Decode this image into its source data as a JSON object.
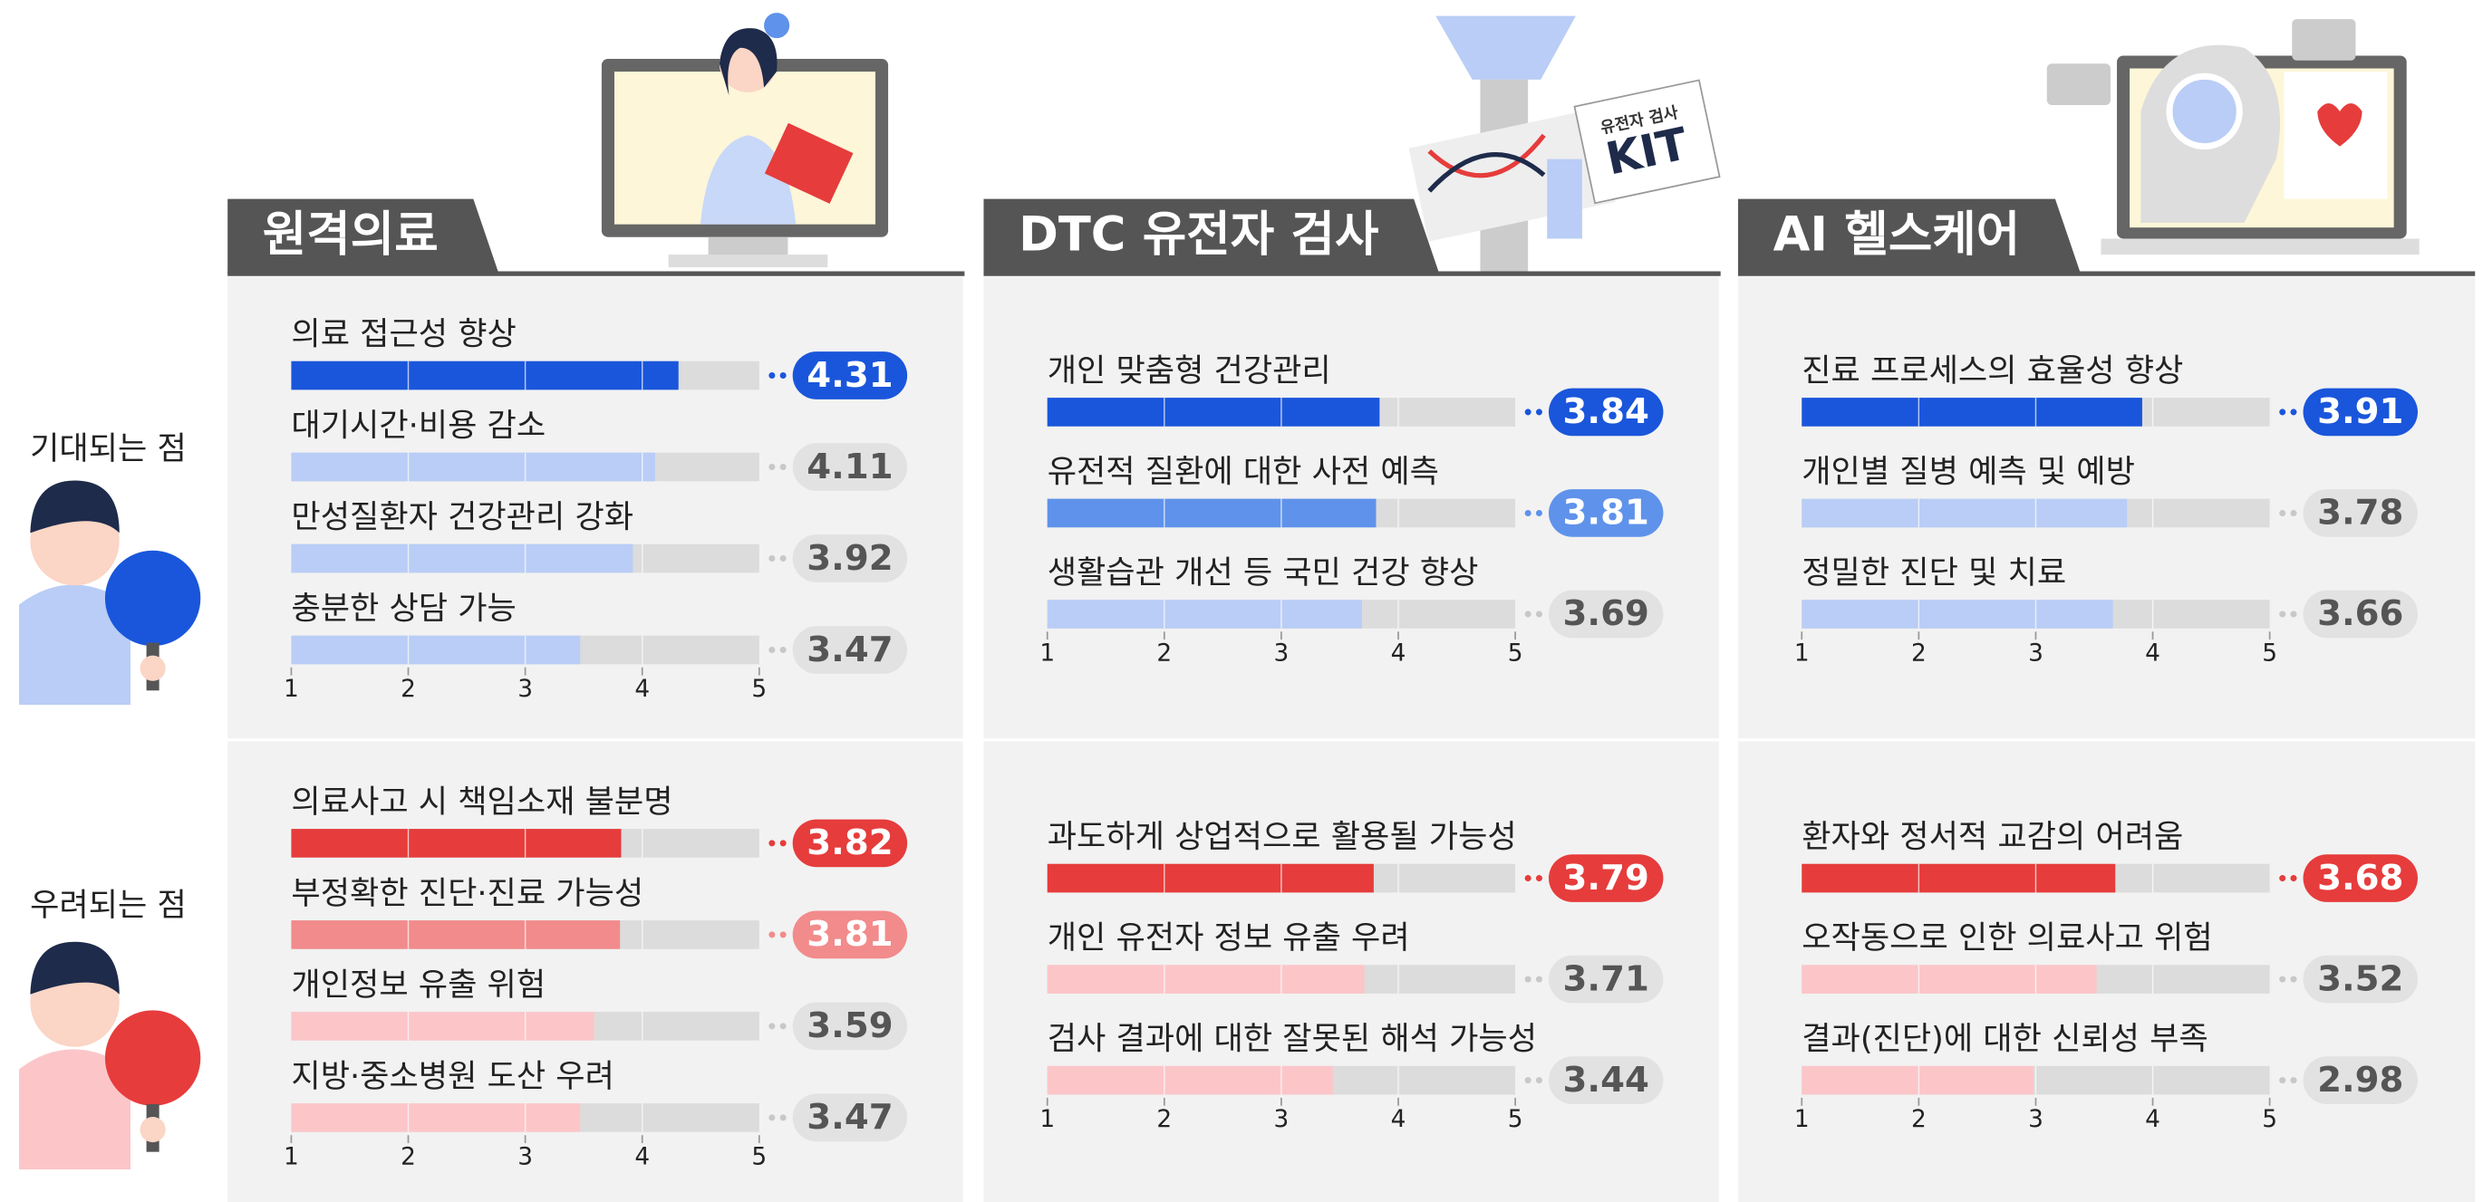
{
  "panels": [
    "원격의료",
    "DTC 유전자 검사",
    "AI 헬스케어"
  ],
  "row_labels": [
    "기대되는 점",
    "우려되는 점"
  ],
  "illustration_text": [
    "유전자 검사",
    "KIT"
  ],
  "chart_data": [
    {
      "type": "bar",
      "orientation": "horizontal",
      "categories": [
        "의료 접근성 향상",
        "대기시간·비용 감소",
        "만성질환자 건강관리 강화",
        "충분한 상담 가능"
      ],
      "values": [
        4.31,
        4.11,
        3.92,
        3.47
      ],
      "colors": [
        "#1a56db",
        "#b9cdf6",
        "#b9cdf6",
        "#b9cdf6"
      ],
      "badge_colors": [
        "#1a56db",
        null,
        null,
        null
      ],
      "xlim": [
        1,
        5
      ],
      "xticks": [
        1,
        2,
        3,
        4,
        5
      ]
    },
    {
      "type": "bar",
      "orientation": "horizontal",
      "categories": [
        "의료사고 시 책임소재 불분명",
        "부정확한 진단·진료 가능성",
        "개인정보 유출 위험",
        "지방·중소병원 도산 우려"
      ],
      "values": [
        3.82,
        3.81,
        3.59,
        3.47
      ],
      "colors": [
        "#e63c3c",
        "#f28b8b",
        "#fcc6c9",
        "#fcc6c9"
      ],
      "badge_colors": [
        "#e63c3c",
        "#f28b8b",
        null,
        null
      ],
      "xlim": [
        1,
        5
      ],
      "xticks": [
        1,
        2,
        3,
        4,
        5
      ]
    },
    {
      "type": "bar",
      "orientation": "horizontal",
      "categories": [
        "개인 맞춤형 건강관리",
        "유전적 질환에 대한 사전 예측",
        "생활습관 개선 등 국민 건강 향상"
      ],
      "values": [
        3.84,
        3.81,
        3.69
      ],
      "colors": [
        "#1a56db",
        "#5f92ea",
        "#b9cdf6"
      ],
      "badge_colors": [
        "#1a56db",
        "#5f92ea",
        null
      ],
      "xlim": [
        1,
        5
      ],
      "xticks": [
        1,
        2,
        3,
        4,
        5
      ]
    },
    {
      "type": "bar",
      "orientation": "horizontal",
      "categories": [
        "과도하게 상업적으로 활용될 가능성",
        "개인 유전자 정보 유출 우려",
        "검사 결과에 대한 잘못된 해석 가능성"
      ],
      "values": [
        3.79,
        3.71,
        3.44
      ],
      "colors": [
        "#e63c3c",
        "#fcc6c9",
        "#fcc6c9"
      ],
      "badge_colors": [
        "#e63c3c",
        null,
        null
      ],
      "xlim": [
        1,
        5
      ],
      "xticks": [
        1,
        2,
        3,
        4,
        5
      ]
    },
    {
      "type": "bar",
      "orientation": "horizontal",
      "categories": [
        "진료 프로세스의 효율성 향상",
        "개인별 질병 예측 및 예방",
        "정밀한 진단 및 치료"
      ],
      "values": [
        3.91,
        3.78,
        3.66
      ],
      "colors": [
        "#1a56db",
        "#b9cdf6",
        "#b9cdf6"
      ],
      "badge_colors": [
        "#1a56db",
        null,
        null
      ],
      "xlim": [
        1,
        5
      ],
      "xticks": [
        1,
        2,
        3,
        4,
        5
      ]
    },
    {
      "type": "bar",
      "orientation": "horizontal",
      "categories": [
        "환자와 정서적 교감의 어려움",
        "오작동으로 인한 의료사고 위험",
        "결과(진단)에 대한 신뢰성 부족"
      ],
      "values": [
        3.68,
        3.52,
        2.98
      ],
      "colors": [
        "#e63c3c",
        "#fcc6c9",
        "#fcc6c9"
      ],
      "badge_colors": [
        "#e63c3c",
        null,
        null
      ],
      "xlim": [
        1,
        5
      ],
      "xticks": [
        1,
        2,
        3,
        4,
        5
      ]
    }
  ]
}
